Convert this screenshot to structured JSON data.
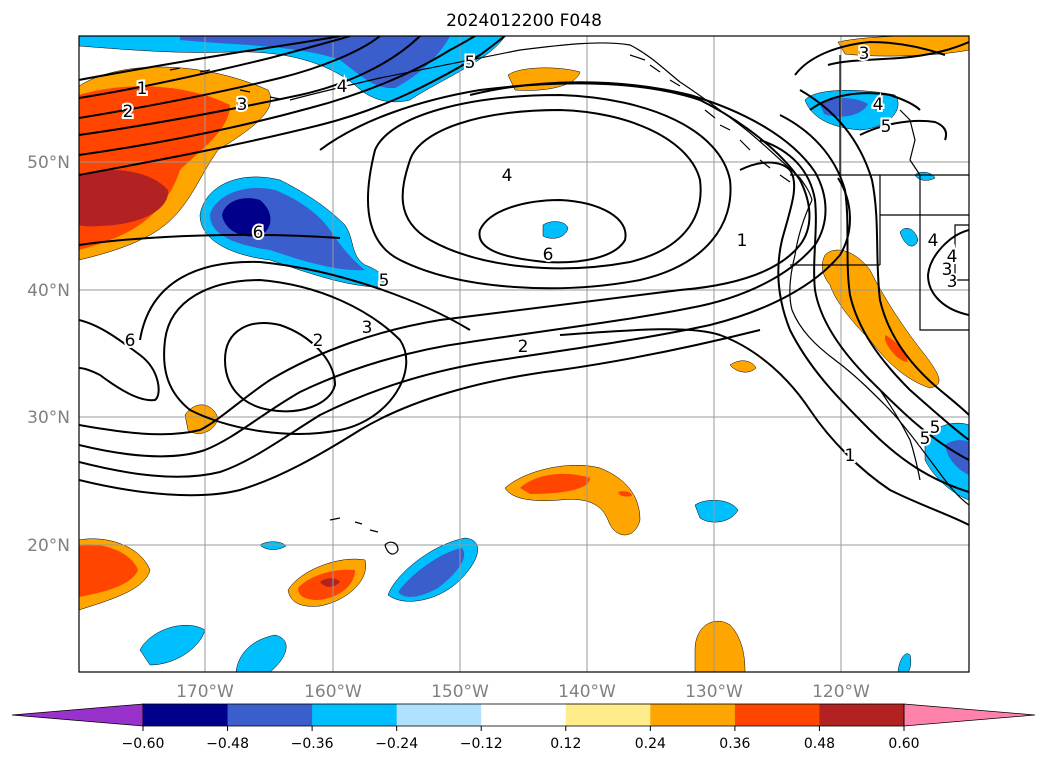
{
  "title": "2024012200 F048",
  "lat_labels": [
    "50°N",
    "40°N",
    "30°N",
    "20°N"
  ],
  "lon_labels": [
    "170°W",
    "160°W",
    "150°W",
    "140°W",
    "130°W",
    "120°W"
  ],
  "colorbar": {
    "colors": [
      "#9932cc",
      "#00008b",
      "#3a5fcd",
      "#00bfff",
      "#b0e2ff",
      "#ffffff",
      "#ffec8b",
      "#ffa500",
      "#ff4500",
      "#b22222",
      "#ff82ab"
    ],
    "ticks": [
      "−0.60",
      "−0.48",
      "−0.36",
      "−0.24",
      "−0.12",
      "0.12",
      "0.24",
      "0.36",
      "0.48",
      "0.60"
    ]
  },
  "contour_labels": [
    "1",
    "2",
    "3",
    "3",
    "4",
    "4",
    "5",
    "5",
    "6",
    "6",
    "2",
    "3",
    "5",
    "6",
    "4",
    "2",
    "1",
    "1",
    "4",
    "3",
    "5",
    "3",
    "4",
    "5"
  ]
}
